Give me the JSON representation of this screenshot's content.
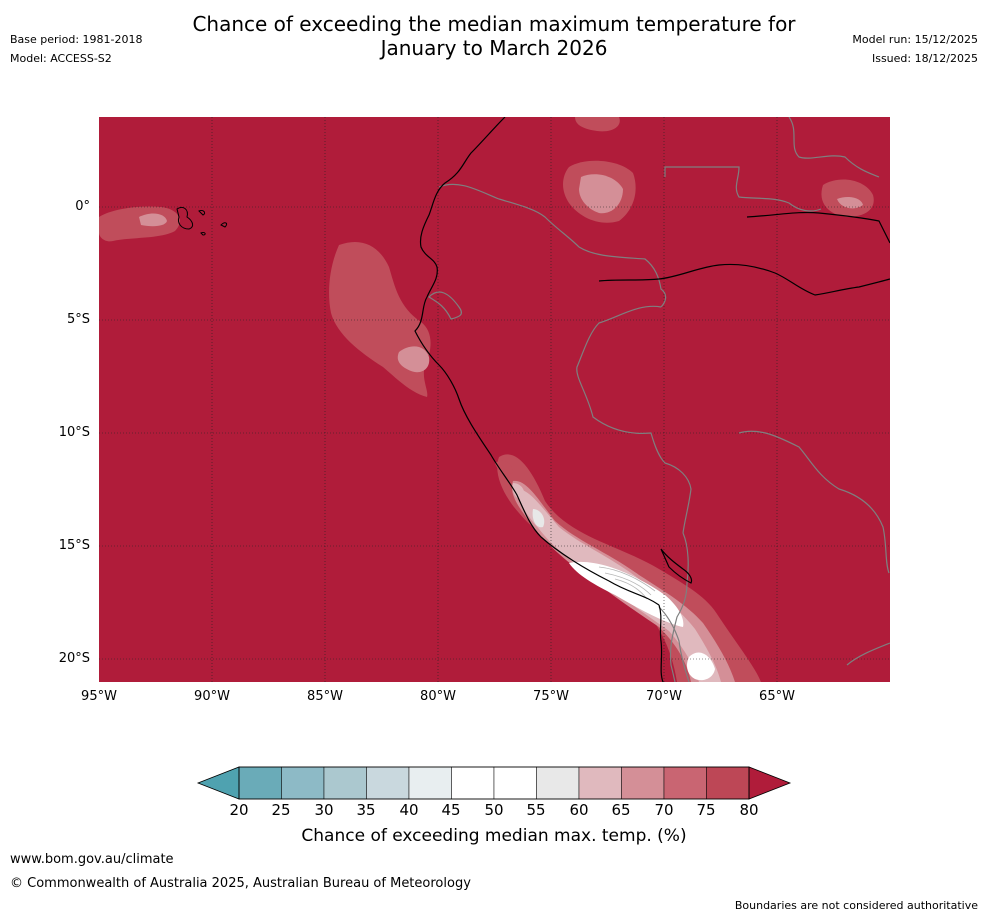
{
  "header": {
    "title_line1": "Chance of exceeding the median maximum temperature for",
    "title_line2": "January to March 2026",
    "base_period": "Base period: 1981-2018",
    "model": "Model: ACCESS-S2",
    "model_run": "Model run: 15/12/2025",
    "issued": "Issued: 18/12/2025"
  },
  "map": {
    "lat_labels": [
      "0°",
      "5°S",
      "10°S",
      "15°S",
      "20°S"
    ],
    "lat_values": [
      0,
      -5,
      -10,
      -15,
      -20
    ],
    "lon_labels": [
      "95°W",
      "90°W",
      "85°W",
      "80°W",
      "75°W",
      "70°W",
      "65°W"
    ],
    "lon_values": [
      -95,
      -90,
      -85,
      -80,
      -75,
      -70,
      -65
    ]
  },
  "colorbar": {
    "ticks": [
      "20",
      "25",
      "30",
      "35",
      "40",
      "45",
      "50",
      "55",
      "60",
      "65",
      "70",
      "75",
      "80"
    ],
    "colors": [
      "#6aabb8",
      "#8dbac6",
      "#abc8cf",
      "#c9d8de",
      "#e8eef0",
      "#ffffff",
      "#ffffff",
      "#e8e8e8",
      "#e0b9be",
      "#d48f97",
      "#c96572",
      "#bd4756"
    ],
    "under_color": "#4fa2b0",
    "over_color": "#b01c3a",
    "label": "Chance of exceeding median max. temp. (%)"
  },
  "footer": {
    "url": "www.bom.gov.au/climate",
    "copyright": "© Commonwealth of Australia 2025, Australian Bureau of Meteorology",
    "disclaimer": "Boundaries are not considered authoritative"
  }
}
